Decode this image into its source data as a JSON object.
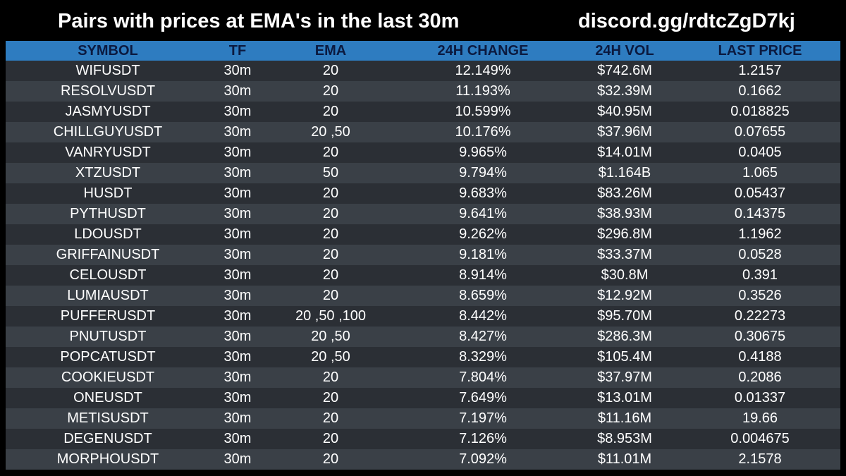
{
  "header": {
    "title": "Pairs with prices at EMA's in the last 30m",
    "discord": "discord.gg/rdtcZgD7kj"
  },
  "colors": {
    "background": "#000000",
    "header_accent": "#2e7cc0",
    "row_dark": "#2b2f35",
    "row_light": "#3a4047",
    "header_text": "#0b1a40",
    "text": "#ffffff"
  },
  "table": {
    "columns": [
      "SYMBOL",
      "TF",
      "EMA",
      "24H CHANGE",
      "24H VOL",
      "LAST PRICE"
    ],
    "rows": [
      {
        "symbol": "WIFUSDT",
        "tf": "30m",
        "ema": "20",
        "change": "12.149%",
        "vol": "$742.6M",
        "last": "1.2157"
      },
      {
        "symbol": "RESOLVUSDT",
        "tf": "30m",
        "ema": "20",
        "change": "11.193%",
        "vol": "$32.39M",
        "last": "0.1662"
      },
      {
        "symbol": "JASMYUSDT",
        "tf": "30m",
        "ema": "20",
        "change": "10.599%",
        "vol": "$40.95M",
        "last": "0.018825"
      },
      {
        "symbol": "CHILLGUYUSDT",
        "tf": "30m",
        "ema": "20 ,50",
        "change": "10.176%",
        "vol": "$37.96M",
        "last": "0.07655"
      },
      {
        "symbol": "VANRYUSDT",
        "tf": "30m",
        "ema": "20",
        "change": "9.965%",
        "vol": "$14.01M",
        "last": "0.0405"
      },
      {
        "symbol": "XTZUSDT",
        "tf": "30m",
        "ema": "50",
        "change": "9.794%",
        "vol": "$1.164B",
        "last": "1.065"
      },
      {
        "symbol": "HUSDT",
        "tf": "30m",
        "ema": "20",
        "change": "9.683%",
        "vol": "$83.26M",
        "last": "0.05437"
      },
      {
        "symbol": "PYTHUSDT",
        "tf": "30m",
        "ema": "20",
        "change": "9.641%",
        "vol": "$38.93M",
        "last": "0.14375"
      },
      {
        "symbol": "LDOUSDT",
        "tf": "30m",
        "ema": "20",
        "change": "9.262%",
        "vol": "$296.8M",
        "last": "1.1962"
      },
      {
        "symbol": "GRIFFAINUSDT",
        "tf": "30m",
        "ema": "20",
        "change": "9.181%",
        "vol": "$33.37M",
        "last": "0.0528"
      },
      {
        "symbol": "CELOUSDT",
        "tf": "30m",
        "ema": "20",
        "change": "8.914%",
        "vol": "$30.8M",
        "last": "0.391"
      },
      {
        "symbol": "LUMIAUSDT",
        "tf": "30m",
        "ema": "20",
        "change": "8.659%",
        "vol": "$12.92M",
        "last": "0.3526"
      },
      {
        "symbol": "PUFFERUSDT",
        "tf": "30m",
        "ema": "20 ,50 ,100",
        "change": "8.442%",
        "vol": "$95.70M",
        "last": "0.22273"
      },
      {
        "symbol": "PNUTUSDT",
        "tf": "30m",
        "ema": "20 ,50",
        "change": "8.427%",
        "vol": "$286.3M",
        "last": "0.30675"
      },
      {
        "symbol": "POPCATUSDT",
        "tf": "30m",
        "ema": "20 ,50",
        "change": "8.329%",
        "vol": "$105.4M",
        "last": "0.4188"
      },
      {
        "symbol": "COOKIEUSDT",
        "tf": "30m",
        "ema": "20",
        "change": "7.804%",
        "vol": "$37.97M",
        "last": "0.2086"
      },
      {
        "symbol": "ONEUSDT",
        "tf": "30m",
        "ema": "20",
        "change": "7.649%",
        "vol": "$13.01M",
        "last": "0.01337"
      },
      {
        "symbol": "METISUSDT",
        "tf": "30m",
        "ema": "20",
        "change": "7.197%",
        "vol": "$11.16M",
        "last": "19.66"
      },
      {
        "symbol": "DEGENUSDT",
        "tf": "30m",
        "ema": "20",
        "change": "7.126%",
        "vol": "$8.953M",
        "last": "0.004675"
      },
      {
        "symbol": "MORPHOUSDT",
        "tf": "30m",
        "ema": "20",
        "change": "7.092%",
        "vol": "$11.01M",
        "last": "2.1578"
      }
    ]
  }
}
